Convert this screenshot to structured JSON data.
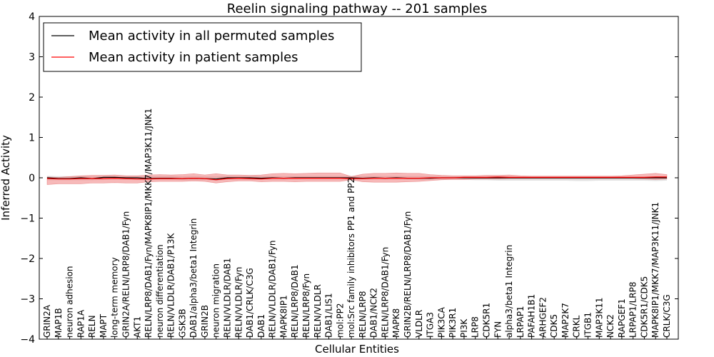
{
  "chart_data": {
    "type": "line",
    "title": "Reelin signaling pathway -- 201 samples",
    "xlabel": "Cellular Entities",
    "ylabel": "Inferred Activity",
    "ylim": [
      -4,
      4
    ],
    "yticks": [
      "−4",
      "−3",
      "−2",
      "−1",
      "0",
      "1",
      "2",
      "3",
      "4"
    ],
    "legend": {
      "placement": "top-left",
      "entries": [
        "Mean activity in all permuted samples",
        "Mean activity in patient samples"
      ]
    },
    "categories": [
      "GRIN2A",
      "MAP1B",
      "neuron adhesion",
      "RAP1A",
      "RELN",
      "MAPT",
      "long-term memory",
      "GRIN2A/RELN/LRP8/DAB1/Fyn",
      "AKT1",
      "RELN/LRP8/DAB1/Fyn/MAPK8IP1/MKK7/MAP3K11/JNK1",
      "neuron differentiation",
      "RELN/VLDLR/DAB1/P13K",
      "GSK3B",
      "DAB1/alpha3/beta1 Integrin",
      "GRIN2B",
      "neuron migration",
      "RELN/VLDLR/DAB1",
      "RELN/VLDLR/Fyn",
      "DAB1/CRLK/C3G",
      "DAB1",
      "RELN/VLDLR/DAB1/Fyn",
      "MAPK8IP1",
      "RELN/LRP8/DAB1",
      "RELN/LRP8/Fyn",
      "RELN/VLDLR",
      "DAB1/LIS1",
      "mol:PP2",
      "mol:Src family inhibitors PP1 and PP2",
      "RELN/LRP8",
      "DAB1/NCK2",
      "RELN/LRP8/DAB1/Fyn",
      "MAPK8",
      "GRIN2B/RELN/LRP8/DAB1/Fyn",
      "VLDLR",
      "ITGA3",
      "PIK3CA",
      "PIK3R1",
      "PI3K",
      "LRP8",
      "CDK5R1",
      "FYN",
      "alpha3/beta1 Integrin",
      "LRPAP1",
      "PAFAH1B1",
      "ARHGEF2",
      "CDK5",
      "MAP2K7",
      "CRKL",
      "ITGB1",
      "MAP3K11",
      "NCK2",
      "RAPGEF1",
      "LRPAP1/LRP8",
      "CDK5R1/CDK5",
      "MAPK8IP1/MKK7/MAP3K11/JNK1",
      "CRLK/C3G"
    ],
    "series": [
      {
        "name": "Mean activity in all permuted samples",
        "color": "#000000",
        "values": [
          0,
          -0.02,
          -0.02,
          0,
          -0.02,
          0.01,
          0.01,
          0,
          0,
          -0.02,
          -0.01,
          -0.01,
          -0.02,
          -0.01,
          -0.02,
          -0.03,
          0,
          0,
          0,
          -0.01,
          0,
          -0.01,
          0,
          0,
          0,
          0,
          0,
          0,
          -0.01,
          0,
          -0.01,
          0,
          -0.01,
          -0.01,
          -0.01,
          0,
          0,
          0,
          0,
          0,
          0,
          0,
          0,
          0,
          0,
          0,
          0,
          0,
          0,
          0,
          0,
          0,
          0,
          0,
          0,
          0
        ],
        "lower": [
          -0.06,
          -0.06,
          -0.06,
          -0.06,
          -0.06,
          -0.05,
          -0.05,
          -0.05,
          -0.05,
          -0.06,
          -0.05,
          -0.05,
          -0.06,
          -0.06,
          -0.06,
          -0.07,
          -0.05,
          -0.05,
          -0.05,
          -0.05,
          -0.05,
          -0.05,
          -0.05,
          -0.04,
          -0.04,
          -0.04,
          -0.04,
          -0.04,
          -0.05,
          -0.05,
          -0.05,
          -0.05,
          -0.05,
          -0.05,
          -0.05,
          -0.05,
          -0.05,
          -0.05,
          -0.06,
          -0.06,
          -0.07,
          -0.07,
          -0.07,
          -0.07,
          -0.07,
          -0.07,
          -0.07,
          -0.08,
          -0.08,
          -0.07,
          -0.07,
          -0.07,
          -0.07,
          -0.07,
          -0.08,
          -0.07
        ],
        "upper": [
          0.05,
          0.04,
          0.04,
          0.05,
          0.04,
          0.05,
          0.05,
          0.05,
          0.05,
          0.04,
          0.05,
          0.05,
          0.04,
          0.05,
          0.04,
          0.04,
          0.05,
          0.05,
          0.05,
          0.05,
          0.05,
          0.05,
          0.05,
          0.05,
          0.05,
          0.05,
          0.05,
          0.05,
          0.05,
          0.05,
          0.05,
          0.05,
          0.05,
          0.05,
          0.05,
          0.04,
          0.04,
          0.04,
          0.04,
          0.04,
          0.04,
          0.04,
          0.03,
          0.03,
          0.03,
          0.03,
          0.03,
          0.03,
          0.03,
          0.03,
          0.03,
          0.03,
          0.03,
          0.03,
          0.03,
          0.03
        ]
      },
      {
        "name": "Mean activity in patient samples",
        "color": "#ff0000",
        "band_color": "#f08080",
        "values": [
          -0.02,
          -0.03,
          -0.03,
          -0.02,
          -0.02,
          -0.02,
          -0.01,
          -0.02,
          -0.03,
          -0.03,
          -0.02,
          -0.02,
          -0.02,
          -0.01,
          -0.02,
          -0.05,
          -0.02,
          -0.01,
          -0.02,
          -0.03,
          -0.01,
          -0.01,
          -0.01,
          -0.01,
          -0.01,
          -0.01,
          -0.01,
          -0.02,
          -0.02,
          -0.01,
          -0.01,
          -0.01,
          -0.01,
          -0.01,
          0,
          0,
          0,
          0.01,
          0.01,
          0.01,
          0.02,
          0.01,
          0.01,
          0.01,
          0.01,
          0.01,
          0.01,
          0.01,
          0.01,
          0.01,
          0.01,
          0.01,
          0.01,
          0.01,
          0.02,
          0.02
        ],
        "lower": [
          -0.17,
          -0.15,
          -0.15,
          -0.15,
          -0.13,
          -0.13,
          -0.12,
          -0.13,
          -0.13,
          -0.1,
          -0.09,
          -0.09,
          -0.09,
          -0.08,
          -0.09,
          -0.13,
          -0.1,
          -0.08,
          -0.08,
          -0.1,
          -0.09,
          -0.09,
          -0.1,
          -0.09,
          -0.09,
          -0.09,
          -0.09,
          -0.05,
          -0.1,
          -0.11,
          -0.11,
          -0.11,
          -0.1,
          -0.09,
          -0.07,
          -0.05,
          -0.04,
          -0.04,
          -0.03,
          -0.03,
          -0.03,
          -0.02,
          -0.02,
          -0.02,
          -0.02,
          -0.02,
          -0.02,
          -0.02,
          -0.02,
          -0.02,
          -0.02,
          -0.02,
          -0.02,
          -0.03,
          -0.04,
          -0.03
        ],
        "upper": [
          0.02,
          0.01,
          0.03,
          0.05,
          0.06,
          0.06,
          0.07,
          0.05,
          0.05,
          0.07,
          0.08,
          0.07,
          0.08,
          0.1,
          0.07,
          0.1,
          0.07,
          0.07,
          0.06,
          0.07,
          0.1,
          0.11,
          0.1,
          0.11,
          0.12,
          0.12,
          0.12,
          0.03,
          0.09,
          0.11,
          0.11,
          0.12,
          0.11,
          0.11,
          0.08,
          0.06,
          0.05,
          0.05,
          0.05,
          0.06,
          0.06,
          0.07,
          0.05,
          0.04,
          0.04,
          0.04,
          0.04,
          0.04,
          0.04,
          0.04,
          0.04,
          0.05,
          0.07,
          0.09,
          0.11,
          0.08
        ]
      }
    ]
  }
}
